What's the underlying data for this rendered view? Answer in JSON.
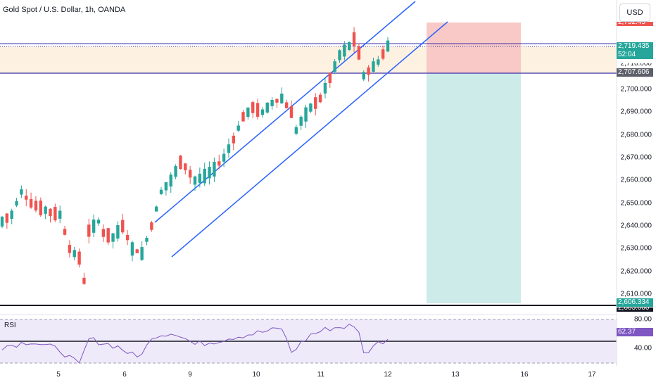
{
  "header": {
    "title": "Gold Spot / U.S. Dollar, 1h, OANDA",
    "currency_button": "USD"
  },
  "price_axis": {
    "ticks": [
      "2,700.000",
      "2,690.000",
      "2,680.000",
      "2,670.000",
      "2,660.000",
      "2,650.000",
      "2,640.000",
      "2,630.000",
      "2,620.000",
      "2,610.000"
    ],
    "tags": {
      "current_price": "2,719.435",
      "countdown": "52:04",
      "entry": "2,707.606",
      "target": "2,606.334",
      "partial_top": "2,732.45",
      "partial_710": "2,710.000",
      "partial_bottom": "2,605.000"
    }
  },
  "rsi": {
    "label": "RSI",
    "value": "62.37",
    "ticks": [
      "80.00",
      "40.00"
    ]
  },
  "time_axis": {
    "labels": [
      "5",
      "6",
      "9",
      "10",
      "11",
      "12",
      "13",
      "16",
      "17"
    ]
  },
  "colors": {
    "up": "#26a69a",
    "down": "#ef5350",
    "channel": "#2962ff",
    "horizontal": "#3b2ca8",
    "stop_zone": "#f8c9c6",
    "target_zone": "#cdebe8",
    "supply_band": "#fdf1e1",
    "rsi_line": "#7e57c2",
    "rsi_band": "#efeaf9"
  },
  "chart_data": {
    "type": "candlestick",
    "title": "Gold Spot / U.S. Dollar, 1h, OANDA",
    "x_labels": [
      "5",
      "6",
      "9",
      "10",
      "11",
      "12",
      "13",
      "16",
      "17"
    ],
    "ylim": [
      2605,
      2735
    ],
    "annotations": {
      "current_price": 2719.435,
      "entry_level": 2707.606,
      "target_level": 2606.334,
      "stop_zone_top": 2732.45,
      "ascending_channel": true
    },
    "close_path": [
      [
        0,
        2642
      ],
      [
        2,
        2645
      ],
      [
        4,
        2655
      ],
      [
        6,
        2650
      ],
      [
        8,
        2648
      ],
      [
        10,
        2646
      ],
      [
        12,
        2645
      ],
      [
        14,
        2630
      ],
      [
        16,
        2626
      ],
      [
        17,
        2616
      ],
      [
        18,
        2638
      ],
      [
        20,
        2642
      ],
      [
        21,
        2637
      ],
      [
        23,
        2635
      ],
      [
        25,
        2640
      ],
      [
        27,
        2630
      ],
      [
        29,
        2628
      ],
      [
        31,
        2640
      ],
      [
        33,
        2655
      ],
      [
        35,
        2660
      ],
      [
        37,
        2668
      ],
      [
        38,
        2666
      ],
      [
        40,
        2660
      ],
      [
        42,
        2662
      ],
      [
        44,
        2665
      ],
      [
        46,
        2670
      ],
      [
        48,
        2678
      ],
      [
        50,
        2688
      ],
      [
        52,
        2692
      ],
      [
        54,
        2690
      ],
      [
        56,
        2694
      ],
      [
        58,
        2696
      ],
      [
        60,
        2690
      ],
      [
        61,
        2682
      ],
      [
        62,
        2686
      ],
      [
        64,
        2692
      ],
      [
        66,
        2696
      ],
      [
        68,
        2705
      ],
      [
        70,
        2715
      ],
      [
        72,
        2719
      ],
      [
        73,
        2722
      ],
      [
        74,
        2716
      ],
      [
        75,
        2706
      ],
      [
        76,
        2708
      ],
      [
        78,
        2712
      ],
      [
        80,
        2719
      ]
    ],
    "rsi_series": [
      [
        0,
        55
      ],
      [
        6,
        60
      ],
      [
        12,
        52
      ],
      [
        16,
        38
      ],
      [
        18,
        62
      ],
      [
        24,
        55
      ],
      [
        28,
        45
      ],
      [
        32,
        66
      ],
      [
        36,
        68
      ],
      [
        40,
        57
      ],
      [
        44,
        60
      ],
      [
        48,
        64
      ],
      [
        52,
        67
      ],
      [
        56,
        70
      ],
      [
        58,
        72
      ],
      [
        60,
        50
      ],
      [
        64,
        66
      ],
      [
        68,
        72
      ],
      [
        72,
        74
      ],
      [
        74,
        70
      ],
      [
        75,
        48
      ],
      [
        77,
        56
      ],
      [
        80,
        62.37
      ]
    ],
    "rsi_levels": [
      80,
      40
    ]
  }
}
